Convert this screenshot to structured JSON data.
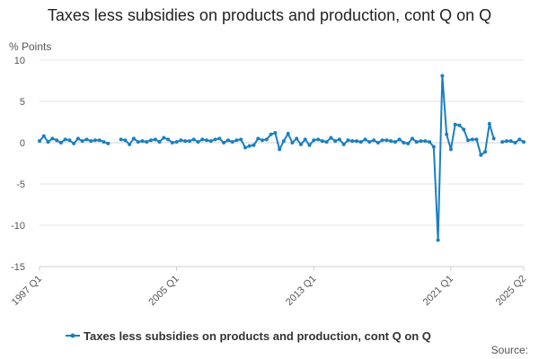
{
  "chart_data": {
    "type": "line",
    "title": "Taxes less subsidies on products and production, cont Q on Q",
    "ylabel": "% Points",
    "xlabel": "",
    "ylim": [
      -15,
      10
    ],
    "yticks": [
      10,
      5,
      0,
      -5,
      -10,
      -15
    ],
    "x_tick_labels": [
      "1997 Q1",
      "2005 Q1",
      "2013 Q1",
      "2021 Q1",
      "2025 Q2"
    ],
    "x_tick_positions": [
      "1997 Q1",
      "2005 Q1",
      "2013 Q1",
      "2021 Q1",
      "2025 Q2"
    ],
    "grid": true,
    "legend": "bottom",
    "source_label": "Source:",
    "colors": {
      "series": "#1f77b4",
      "grid": "#e6e6e6",
      "axis": "#cccccc"
    },
    "series": [
      {
        "name": "Taxes less subsidies on products and production, cont Q on Q",
        "color": "#1a7fbf",
        "points": [
          [
            "1997 Q1",
            0.2
          ],
          [
            "1997 Q2",
            0.8
          ],
          [
            "1997 Q3",
            0.1
          ],
          [
            "1997 Q4",
            0.5
          ],
          [
            "1998 Q1",
            0.3
          ],
          [
            "1998 Q2",
            0.0
          ],
          [
            "1998 Q3",
            0.4
          ],
          [
            "1998 Q4",
            0.3
          ],
          [
            "1999 Q1",
            -0.1
          ],
          [
            "1999 Q2",
            0.5
          ],
          [
            "1999 Q3",
            0.2
          ],
          [
            "1999 Q4",
            0.4
          ],
          [
            "2000 Q1",
            0.2
          ],
          [
            "2000 Q2",
            0.3
          ],
          [
            "2000 Q3",
            0.3
          ],
          [
            "2000 Q4",
            0.1
          ],
          [
            "2001 Q1",
            -0.1
          ],
          [
            "2001 Q2",
            null
          ],
          [
            "2001 Q3",
            null
          ],
          [
            "2001 Q4",
            0.4
          ],
          [
            "2002 Q1",
            0.3
          ],
          [
            "2002 Q2",
            -0.2
          ],
          [
            "2002 Q3",
            0.5
          ],
          [
            "2002 Q4",
            0.1
          ],
          [
            "2003 Q1",
            0.2
          ],
          [
            "2003 Q2",
            0.1
          ],
          [
            "2003 Q3",
            0.3
          ],
          [
            "2003 Q4",
            0.4
          ],
          [
            "2004 Q1",
            0.1
          ],
          [
            "2004 Q2",
            0.6
          ],
          [
            "2004 Q3",
            0.4
          ],
          [
            "2004 Q4",
            0.0
          ],
          [
            "2005 Q1",
            0.1
          ],
          [
            "2005 Q2",
            0.3
          ],
          [
            "2005 Q3",
            0.2
          ],
          [
            "2005 Q4",
            0.2
          ],
          [
            "2006 Q1",
            0.4
          ],
          [
            "2006 Q2",
            0.1
          ],
          [
            "2006 Q3",
            0.4
          ],
          [
            "2006 Q4",
            0.3
          ],
          [
            "2007 Q1",
            0.2
          ],
          [
            "2007 Q2",
            0.4
          ],
          [
            "2007 Q3",
            0.5
          ],
          [
            "2007 Q4",
            0.0
          ],
          [
            "2008 Q1",
            0.3
          ],
          [
            "2008 Q2",
            0.1
          ],
          [
            "2008 Q3",
            0.3
          ],
          [
            "2008 Q4",
            0.4
          ],
          [
            "2009 Q1",
            -0.6
          ],
          [
            "2009 Q2",
            -0.4
          ],
          [
            "2009 Q3",
            -0.3
          ],
          [
            "2009 Q4",
            0.5
          ],
          [
            "2010 Q1",
            0.3
          ],
          [
            "2010 Q2",
            0.4
          ],
          [
            "2010 Q3",
            1.0
          ],
          [
            "2010 Q4",
            1.2
          ],
          [
            "2011 Q1",
            -0.8
          ],
          [
            "2011 Q2",
            0.2
          ],
          [
            "2011 Q3",
            1.1
          ],
          [
            "2011 Q4",
            0.0
          ],
          [
            "2012 Q1",
            0.5
          ],
          [
            "2012 Q2",
            -0.2
          ],
          [
            "2012 Q3",
            0.4
          ],
          [
            "2012 Q4",
            -0.3
          ],
          [
            "2013 Q1",
            0.3
          ],
          [
            "2013 Q2",
            0.4
          ],
          [
            "2013 Q3",
            0.2
          ],
          [
            "2013 Q4",
            0.1
          ],
          [
            "2014 Q1",
            0.6
          ],
          [
            "2014 Q2",
            0.2
          ],
          [
            "2014 Q3",
            0.4
          ],
          [
            "2014 Q4",
            -0.2
          ],
          [
            "2015 Q1",
            0.3
          ],
          [
            "2015 Q2",
            0.2
          ],
          [
            "2015 Q3",
            0.2
          ],
          [
            "2015 Q4",
            0.1
          ],
          [
            "2016 Q1",
            0.4
          ],
          [
            "2016 Q2",
            0.1
          ],
          [
            "2016 Q3",
            0.3
          ],
          [
            "2016 Q4",
            0.0
          ],
          [
            "2017 Q1",
            0.3
          ],
          [
            "2017 Q2",
            0.3
          ],
          [
            "2017 Q3",
            0.2
          ],
          [
            "2017 Q4",
            0.1
          ],
          [
            "2018 Q1",
            0.4
          ],
          [
            "2018 Q2",
            0.0
          ],
          [
            "2018 Q3",
            -0.1
          ],
          [
            "2018 Q4",
            0.5
          ],
          [
            "2019 Q1",
            0.1
          ],
          [
            "2019 Q2",
            0.2
          ],
          [
            "2019 Q3",
            0.2
          ],
          [
            "2019 Q4",
            0.1
          ],
          [
            "2020 Q1",
            -0.5
          ],
          [
            "2020 Q2",
            -11.8
          ],
          [
            "2020 Q3",
            8.1
          ],
          [
            "2020 Q4",
            1.0
          ],
          [
            "2021 Q1",
            -0.8
          ],
          [
            "2021 Q2",
            2.2
          ],
          [
            "2021 Q3",
            2.1
          ],
          [
            "2021 Q4",
            1.6
          ],
          [
            "2022 Q1",
            0.3
          ],
          [
            "2022 Q2",
            0.4
          ],
          [
            "2022 Q3",
            0.4
          ],
          [
            "2022 Q4",
            -1.5
          ],
          [
            "2023 Q1",
            -1.1
          ],
          [
            "2023 Q2",
            2.3
          ],
          [
            "2023 Q3",
            0.5
          ],
          [
            "2023 Q4",
            null
          ],
          [
            "2024 Q1",
            0.1
          ],
          [
            "2024 Q2",
            0.2
          ],
          [
            "2024 Q3",
            0.2
          ],
          [
            "2024 Q4",
            0.0
          ],
          [
            "2025 Q1",
            0.4
          ],
          [
            "2025 Q2",
            0.1
          ]
        ]
      }
    ]
  }
}
